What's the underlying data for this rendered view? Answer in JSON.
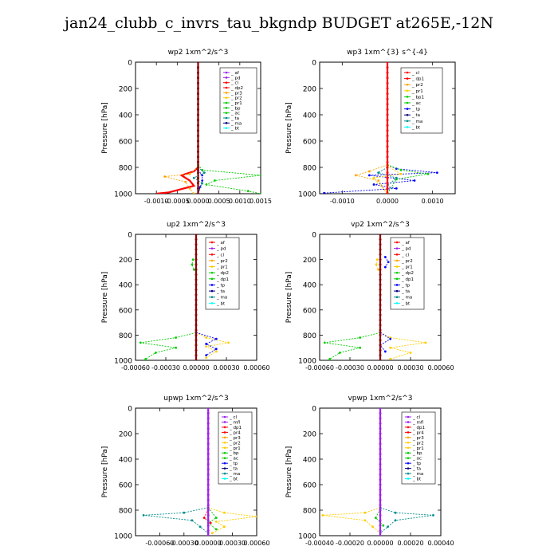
{
  "title": "jan24_clubb_c_invrs_tau_bkgndp  BUDGET at265E,-12N",
  "colors": {
    "red": "#ff0000",
    "purple": "#a020f0",
    "orange": "#ffa500",
    "green": "#00cc00",
    "blue": "#0000ff",
    "teal": "#008b8b",
    "cyan": "#00ffff",
    "darkred": "#8b0000",
    "gold": "#ffcc00",
    "navy": "#000080",
    "limegreen": "#32cd32",
    "steelblue": "#4682b4"
  },
  "chart_data": [
    {
      "type": "line",
      "title": "wp2   1xm^2/s^3",
      "ylabel": "Pressure [hPa]",
      "xlim": [
        -0.0015,
        0.0015
      ],
      "ylim": [
        1000,
        0
      ],
      "xticks": [
        -0.001,
        -0.0005,
        0.0,
        0.0005,
        0.001,
        0.0015
      ],
      "xtick_labels": [
        "-0.0010",
        "-0.0005",
        "0.0000",
        "0.0005",
        "0.0010",
        "0.0015"
      ],
      "yticks": [
        0,
        200,
        400,
        600,
        800,
        1000
      ],
      "legend": [
        "_ af",
        "_ pd",
        "_ cl",
        "_ dp2",
        "_ pr3",
        "_ pr2",
        "_ pr1",
        "_ bp",
        "_ ac",
        "_ ta",
        "_ ma",
        "_ bt"
      ],
      "legend_colors": [
        "purple",
        "purple",
        "red",
        "red",
        "orange",
        "gold",
        "green",
        "green",
        "green",
        "teal",
        "navy",
        "cyan"
      ],
      "series": [
        {
          "color": "green",
          "dashed": true,
          "points": [
            [
              0,
              780
            ],
            [
              0.0001,
              820
            ],
            [
              0.0015,
              860
            ],
            [
              0.0004,
              900
            ],
            [
              0.0002,
              930
            ],
            [
              0.0012,
              980
            ],
            [
              0.0015,
              1000
            ]
          ]
        },
        {
          "color": "red",
          "dashed": false,
          "points": [
            [
              0,
              800
            ],
            [
              -0.0001,
              830
            ],
            [
              -0.0004,
              860
            ],
            [
              -0.0002,
              900
            ],
            [
              -0.0001,
              940
            ],
            [
              -0.0007,
              990
            ],
            [
              -0.001,
              1000
            ]
          ]
        },
        {
          "color": "orange",
          "dashed": true,
          "points": [
            [
              0,
              800
            ],
            [
              -0.0002,
              850
            ],
            [
              -0.0008,
              870
            ],
            [
              -0.0003,
              910
            ],
            [
              -0.0002,
              960
            ],
            [
              -0.0001,
              1000
            ]
          ]
        },
        {
          "color": "blue",
          "dashed": true,
          "points": [
            [
              0,
              820
            ],
            [
              0.0001,
              860
            ],
            [
              0.0001,
              900
            ],
            [
              5e-05,
              950
            ],
            [
              0,
              1000
            ]
          ]
        },
        {
          "color": "teal",
          "dashed": true,
          "points": [
            [
              0,
              800
            ],
            [
              0.00015,
              840
            ],
            [
              -0.0001,
              880
            ],
            [
              0.0001,
              920
            ],
            [
              0,
              1000
            ]
          ]
        },
        {
          "color": "darkred",
          "dashed": false,
          "points": [
            [
              0,
              0
            ],
            [
              0,
              1000
            ]
          ]
        }
      ]
    },
    {
      "type": "line",
      "title": "wp3   1xm^{3} s^{-4}",
      "ylabel": "Pressure [hPa]",
      "xlim": [
        -0.0015,
        0.0015
      ],
      "ylim": [
        1000,
        0
      ],
      "xticks": [
        -0.001,
        0.0,
        0.001
      ],
      "xtick_labels": [
        "-0.0010",
        "0.0000",
        "0.0010"
      ],
      "yticks": [
        0,
        200,
        400,
        600,
        800,
        1000
      ],
      "legend": [
        "_ cl",
        "_ dp1",
        "_ pr2",
        "_ pr1",
        "_ bp1",
        "_ ac",
        "_ tp",
        "_ ta",
        "_ ma",
        "_ bt"
      ],
      "legend_colors": [
        "red",
        "red",
        "orange",
        "gold",
        "green",
        "green",
        "blue",
        "navy",
        "teal",
        "cyan"
      ],
      "series": [
        {
          "color": "blue",
          "dashed": true,
          "points": [
            [
              0,
              780
            ],
            [
              0.0002,
              810
            ],
            [
              0.0011,
              840
            ],
            [
              -0.0004,
              860
            ],
            [
              0.0006,
              900
            ],
            [
              -0.0003,
              930
            ],
            [
              0.0002,
              960
            ],
            [
              -0.0014,
              995
            ]
          ]
        },
        {
          "color": "green",
          "dashed": true,
          "points": [
            [
              0,
              780
            ],
            [
              0.0003,
              820
            ],
            [
              0.0009,
              850
            ],
            [
              0.0002,
              890
            ],
            [
              0,
              1000
            ]
          ]
        },
        {
          "color": "orange",
          "dashed": true,
          "points": [
            [
              0,
              780
            ],
            [
              -0.0004,
              830
            ],
            [
              -0.0007,
              860
            ],
            [
              -0.0002,
              900
            ],
            [
              0,
              1000
            ]
          ]
        },
        {
          "color": "gold",
          "dashed": true,
          "points": [
            [
              0,
              790
            ],
            [
              0.0003,
              850
            ],
            [
              -0.0003,
              880
            ],
            [
              0,
              1000
            ]
          ]
        },
        {
          "color": "teal",
          "dashed": true,
          "points": [
            [
              0,
              800
            ],
            [
              -0.0002,
              840
            ],
            [
              0.0002,
              880
            ],
            [
              0,
              940
            ]
          ]
        },
        {
          "color": "red",
          "dashed": false,
          "points": [
            [
              0,
              0
            ],
            [
              0,
              1000
            ]
          ]
        }
      ]
    },
    {
      "type": "line",
      "title": "up2   1xm^2/s^3",
      "ylabel": "Pressure [hPa]",
      "xlim": [
        -0.0006,
        0.0006
      ],
      "ylim": [
        1000,
        0
      ],
      "xticks": [
        -0.0006,
        -0.0003,
        0.0,
        0.0003,
        0.0006
      ],
      "xtick_labels": [
        "-0.00060",
        "-0.00030",
        "0.00000",
        "0.00030",
        "0.00060"
      ],
      "yticks": [
        0,
        200,
        400,
        600,
        800,
        1000
      ],
      "legend": [
        "_ af",
        "_ pd",
        "_ cl",
        "_ pr2",
        "_ pr1",
        "_ dp2",
        "_ dp1",
        "_ tp",
        "_ ta",
        "_ ma",
        "_ bt"
      ],
      "legend_colors": [
        "red",
        "purple",
        "red",
        "orange",
        "gold",
        "green",
        "green",
        "blue",
        "navy",
        "teal",
        "cyan"
      ],
      "series": [
        {
          "color": "green",
          "dashed": true,
          "points": [
            [
              0,
              780
            ],
            [
              -0.0002,
              820
            ],
            [
              -0.00055,
              860
            ],
            [
              -0.0002,
              900
            ],
            [
              -0.0004,
              940
            ],
            [
              -0.0005,
              990
            ],
            [
              -0.0005,
              1000
            ]
          ]
        },
        {
          "color": "gold",
          "dashed": true,
          "points": [
            [
              0,
              780
            ],
            [
              0.0001,
              820
            ],
            [
              0.00032,
              860
            ],
            [
              0.0001,
              890
            ],
            [
              0.0002,
              930
            ],
            [
              0.0001,
              980
            ]
          ]
        },
        {
          "color": "blue",
          "dashed": true,
          "points": [
            [
              0,
              780
            ],
            [
              0.0002,
              830
            ],
            [
              0.0001,
              870
            ],
            [
              0.0002,
              910
            ],
            [
              0.0001,
              960
            ]
          ]
        },
        {
          "color": "green",
          "dashed": true,
          "points": [
            [
              -3e-05,
              200
            ],
            [
              -4e-05,
              240
            ],
            [
              -2e-05,
              280
            ]
          ]
        },
        {
          "color": "darkred",
          "dashed": false,
          "points": [
            [
              0,
              0
            ],
            [
              0,
              1000
            ]
          ]
        }
      ]
    },
    {
      "type": "line",
      "title": "vp2   1xm^2/s^3",
      "ylabel": "Pressure [hPa]",
      "xlim": [
        -0.0006,
        0.0006
      ],
      "ylim": [
        1000,
        0
      ],
      "xticks": [
        -0.0006,
        -0.0003,
        0.0,
        0.0003,
        0.0006
      ],
      "xtick_labels": [
        "-0.00060",
        "-0.00030",
        "0.00000",
        "0.00030",
        "0.00060"
      ],
      "yticks": [
        0,
        200,
        400,
        600,
        800,
        1000
      ],
      "legend": [
        "_ af",
        "_ pd",
        "_ cl",
        "_ pr2",
        "_ pr1",
        "_ dp2",
        "_ dp1",
        "_ tp",
        "_ ta",
        "_ ma",
        "_ bt"
      ],
      "legend_colors": [
        "red",
        "purple",
        "red",
        "orange",
        "gold",
        "green",
        "green",
        "blue",
        "navy",
        "teal",
        "cyan"
      ],
      "series": [
        {
          "color": "green",
          "dashed": true,
          "points": [
            [
              0,
              780
            ],
            [
              -0.0002,
              820
            ],
            [
              -0.00055,
              860
            ],
            [
              -0.0002,
              900
            ],
            [
              -0.0004,
              940
            ],
            [
              -0.0005,
              990
            ],
            [
              -0.0005,
              1000
            ]
          ]
        },
        {
          "color": "gold",
          "dashed": true,
          "points": [
            [
              0,
              780
            ],
            [
              0.0001,
              820
            ],
            [
              0.00045,
              860
            ],
            [
              0.0001,
              900
            ],
            [
              0.0003,
              940
            ],
            [
              0.0001,
              990
            ]
          ]
        },
        {
          "color": "blue",
          "dashed": true,
          "points": [
            [
              5e-05,
              180
            ],
            [
              8e-05,
              220
            ],
            [
              5e-05,
              260
            ]
          ]
        },
        {
          "color": "blue",
          "dashed": true,
          "points": [
            [
              0,
              780
            ],
            [
              0.0001,
              830
            ],
            [
              0,
              880
            ],
            [
              5e-05,
              930
            ]
          ]
        },
        {
          "color": "gold",
          "dashed": true,
          "points": [
            [
              -3e-05,
              200
            ],
            [
              -4e-05,
              240
            ],
            [
              -2e-05,
              280
            ]
          ]
        },
        {
          "color": "darkred",
          "dashed": false,
          "points": [
            [
              0,
              0
            ],
            [
              0,
              1000
            ]
          ]
        }
      ]
    },
    {
      "type": "line",
      "title": "upwp   1xm^2/s^3",
      "ylabel": "Pressure [hPa]",
      "xlim": [
        -0.0009,
        0.0006
      ],
      "ylim": [
        1000,
        0
      ],
      "xticks": [
        -0.0006,
        -0.0003,
        0.0,
        0.0003,
        0.0006
      ],
      "xtick_labels": [
        "-0.00060",
        "-0.00030",
        "0.00000",
        "0.00030",
        "0.00060"
      ],
      "yticks": [
        0,
        200,
        400,
        600,
        800,
        1000
      ],
      "legend": [
        "_ cl",
        "_ mfl",
        "_ dp1",
        "_ pr4",
        "_ pr3",
        "_ pr2",
        "_ pr1",
        "_ bp",
        "_ ac",
        "_ tp",
        "_ ta",
        "_ ma",
        "_ bt"
      ],
      "legend_colors": [
        "purple",
        "purple",
        "red",
        "red",
        "orange",
        "gold",
        "gold",
        "green",
        "green",
        "blue",
        "navy",
        "teal",
        "cyan"
      ],
      "series": [
        {
          "color": "gold",
          "dashed": true,
          "points": [
            [
              0,
              780
            ],
            [
              0.0002,
              820
            ],
            [
              0.0006,
              850
            ],
            [
              0.0001,
              890
            ],
            [
              0.0002,
              930
            ],
            [
              5e-05,
              980
            ]
          ]
        },
        {
          "color": "teal",
          "dashed": true,
          "points": [
            [
              0,
              780
            ],
            [
              -0.0003,
              820
            ],
            [
              -0.0008,
              840
            ],
            [
              -0.0002,
              880
            ],
            [
              -0.0001,
              930
            ],
            [
              0,
              980
            ]
          ]
        },
        {
          "color": "green",
          "dashed": true,
          "points": [
            [
              0,
              780
            ],
            [
              0.0001,
              860
            ],
            [
              0,
              900
            ],
            [
              0.0001,
              950
            ]
          ]
        },
        {
          "color": "red",
          "dashed": true,
          "points": [
            [
              0,
              790
            ],
            [
              -5e-05,
              860
            ],
            [
              3e-05,
              900
            ]
          ]
        },
        {
          "color": "purple",
          "dashed": false,
          "points": [
            [
              0,
              0
            ],
            [
              0,
              1000
            ]
          ]
        }
      ]
    },
    {
      "type": "line",
      "title": "vpwp   1xm^2/s^3",
      "ylabel": "Pressure [hPa]",
      "xlim": [
        -0.0004,
        0.0004
      ],
      "ylim": [
        1000,
        0
      ],
      "xticks": [
        -0.0004,
        -0.0002,
        0.0,
        0.0002,
        0.0004
      ],
      "xtick_labels": [
        "-0.00040",
        "-0.00020",
        "0.00000",
        "0.00020",
        "0.00040"
      ],
      "yticks": [
        0,
        200,
        400,
        600,
        800,
        1000
      ],
      "legend": [
        "_ cl",
        "_ mfl",
        "_ dp1",
        "_ pr4",
        "_ pr3",
        "_ pr2",
        "_ pr1",
        "_ bp",
        "_ ac",
        "_ tp",
        "_ ta",
        "_ ma",
        "_ bt"
      ],
      "legend_colors": [
        "purple",
        "purple",
        "red",
        "red",
        "orange",
        "gold",
        "gold",
        "green",
        "green",
        "blue",
        "navy",
        "teal",
        "cyan"
      ],
      "series": [
        {
          "color": "gold",
          "dashed": true,
          "points": [
            [
              0,
              780
            ],
            [
              -0.0001,
              820
            ],
            [
              -0.00038,
              840
            ],
            [
              -0.0001,
              880
            ],
            [
              -5e-05,
              930
            ],
            [
              0,
              980
            ]
          ]
        },
        {
          "color": "teal",
          "dashed": true,
          "points": [
            [
              0,
              780
            ],
            [
              0.0001,
              820
            ],
            [
              0.00035,
              840
            ],
            [
              0.0001,
              880
            ],
            [
              5e-05,
              930
            ],
            [
              0,
              980
            ]
          ]
        },
        {
          "color": "green",
          "dashed": true,
          "points": [
            [
              0,
              790
            ],
            [
              -3e-05,
              860
            ],
            [
              2e-05,
              920
            ]
          ]
        },
        {
          "color": "purple",
          "dashed": false,
          "points": [
            [
              0,
              0
            ],
            [
              0,
              1000
            ]
          ]
        }
      ]
    }
  ]
}
